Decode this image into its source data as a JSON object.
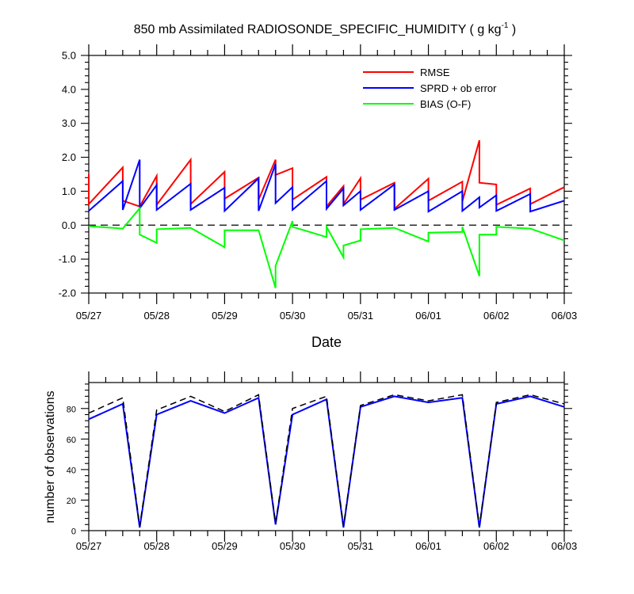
{
  "title": {
    "text": "850 mb Assimilated RADIOSONDE_SPECIFIC_HUMIDITY ( g kg",
    "superscript": "-1",
    "suffix": " )"
  },
  "x_tick_labels": [
    "05/27",
    "05/28",
    "05/29",
    "05/30",
    "05/31",
    "06/01",
    "06/02",
    "06/03"
  ],
  "chart_data": [
    {
      "type": "line",
      "title": "850 mb Assimilated RADIOSONDE_SPECIFIC_HUMIDITY ( g kg-1 )",
      "xlabel": "Date",
      "ylabel": "",
      "x_unit": "days since 05/27 00Z shown as date ticks",
      "xlim": [
        0,
        7
      ],
      "ylim": [
        -2.0,
        5.0
      ],
      "y_ticks": [
        -2.0,
        -1.0,
        0.0,
        1.0,
        2.0,
        3.0,
        4.0,
        5.0
      ],
      "y_tick_labels": [
        "-2.0",
        "-1.0",
        "0.0",
        "1.0",
        "2.0",
        "3.0",
        "4.0",
        "5.0"
      ],
      "reference_line": {
        "y": 0.0,
        "style": "dashed",
        "color": "#000000"
      },
      "legend": {
        "position": "top-right"
      },
      "series": [
        {
          "name": "RMSE",
          "color": "#ff0000",
          "points": [
            [
              0.0,
              1.5
            ],
            [
              0.0,
              0.62
            ],
            [
              0.5,
              1.7
            ],
            [
              0.5,
              0.72
            ],
            [
              0.75,
              0.55
            ],
            [
              0.75,
              0.55
            ],
            [
              1.0,
              1.45
            ],
            [
              1.0,
              0.6
            ],
            [
              1.5,
              1.93
            ],
            [
              1.5,
              0.62
            ],
            [
              2.0,
              1.57
            ],
            [
              2.0,
              0.78
            ],
            [
              2.5,
              1.4
            ],
            [
              2.5,
              0.75
            ],
            [
              2.75,
              1.93
            ],
            [
              2.75,
              1.48
            ],
            [
              3.0,
              1.68
            ],
            [
              3.0,
              0.75
            ],
            [
              3.5,
              1.42
            ],
            [
              3.5,
              0.55
            ],
            [
              3.75,
              1.15
            ],
            [
              3.75,
              0.62
            ],
            [
              4.0,
              1.38
            ],
            [
              4.0,
              0.75
            ],
            [
              4.5,
              1.25
            ],
            [
              4.5,
              0.48
            ],
            [
              5.0,
              1.37
            ],
            [
              5.0,
              0.72
            ],
            [
              5.5,
              1.28
            ],
            [
              5.5,
              0.7
            ],
            [
              5.75,
              2.5
            ],
            [
              5.75,
              1.25
            ],
            [
              6.0,
              1.2
            ],
            [
              6.0,
              0.6
            ],
            [
              6.5,
              1.08
            ],
            [
              6.5,
              0.62
            ],
            [
              7.0,
              1.12
            ]
          ]
        },
        {
          "name": "SPRD + ob error",
          "color": "#0000ff",
          "points": [
            [
              0.0,
              0.42
            ],
            [
              0.5,
              1.3
            ],
            [
              0.5,
              0.45
            ],
            [
              0.75,
              1.93
            ],
            [
              0.75,
              0.5
            ],
            [
              1.0,
              1.18
            ],
            [
              1.0,
              0.45
            ],
            [
              1.5,
              1.22
            ],
            [
              1.5,
              0.45
            ],
            [
              2.0,
              1.1
            ],
            [
              2.0,
              0.42
            ],
            [
              2.5,
              1.38
            ],
            [
              2.5,
              0.42
            ],
            [
              2.75,
              1.8
            ],
            [
              2.75,
              0.65
            ],
            [
              3.0,
              1.12
            ],
            [
              3.0,
              0.45
            ],
            [
              3.5,
              1.3
            ],
            [
              3.5,
              0.48
            ],
            [
              3.75,
              1.08
            ],
            [
              3.75,
              0.58
            ],
            [
              4.0,
              1.0
            ],
            [
              4.0,
              0.45
            ],
            [
              4.5,
              1.2
            ],
            [
              4.5,
              0.45
            ],
            [
              5.0,
              1.0
            ],
            [
              5.0,
              0.4
            ],
            [
              5.5,
              1.0
            ],
            [
              5.5,
              0.42
            ],
            [
              5.75,
              0.82
            ],
            [
              5.75,
              0.52
            ],
            [
              6.0,
              0.88
            ],
            [
              6.0,
              0.42
            ],
            [
              6.5,
              0.92
            ],
            [
              6.5,
              0.4
            ],
            [
              7.0,
              0.72
            ]
          ]
        },
        {
          "name": "BIAS (O-F)",
          "color": "#00ff00",
          "points": [
            [
              0.0,
              -0.03
            ],
            [
              0.5,
              -0.1
            ],
            [
              0.75,
              0.5
            ],
            [
              0.75,
              -0.28
            ],
            [
              1.0,
              -0.52
            ],
            [
              1.0,
              -0.12
            ],
            [
              1.5,
              -0.08
            ],
            [
              2.0,
              -0.65
            ],
            [
              2.0,
              -0.15
            ],
            [
              2.5,
              -0.15
            ],
            [
              2.75,
              -1.85
            ],
            [
              2.75,
              -1.2
            ],
            [
              3.0,
              0.12
            ],
            [
              3.0,
              -0.05
            ],
            [
              3.5,
              -0.35
            ],
            [
              3.5,
              -0.05
            ],
            [
              3.75,
              -0.95
            ],
            [
              3.75,
              -0.6
            ],
            [
              4.0,
              -0.45
            ],
            [
              4.0,
              -0.12
            ],
            [
              4.5,
              -0.08
            ],
            [
              5.0,
              -0.48
            ],
            [
              5.0,
              -0.22
            ],
            [
              5.5,
              -0.2
            ],
            [
              5.5,
              -0.05
            ],
            [
              5.75,
              -1.5
            ],
            [
              5.75,
              -0.28
            ],
            [
              6.0,
              -0.28
            ],
            [
              6.0,
              -0.05
            ],
            [
              6.5,
              -0.1
            ],
            [
              7.0,
              -0.45
            ]
          ]
        }
      ]
    },
    {
      "type": "line",
      "title": "",
      "xlabel": "",
      "ylabel": "number of observations",
      "xlim": [
        0,
        7
      ],
      "ylim": [
        0,
        97
      ],
      "y_ticks": [
        0,
        20,
        40,
        60,
        80
      ],
      "y_tick_labels": [
        "0",
        "20",
        "40",
        "60",
        "80"
      ],
      "series": [
        {
          "name": "",
          "color": "#0000ff",
          "style": "solid",
          "points": [
            [
              0.0,
              73
            ],
            [
              0.5,
              83
            ],
            [
              0.75,
              2
            ],
            [
              1.0,
              76
            ],
            [
              1.5,
              85
            ],
            [
              2.0,
              77
            ],
            [
              2.5,
              87
            ],
            [
              2.75,
              4
            ],
            [
              3.0,
              76
            ],
            [
              3.5,
              86
            ],
            [
              3.75,
              2
            ],
            [
              4.0,
              81
            ],
            [
              4.5,
              88
            ],
            [
              5.0,
              84
            ],
            [
              5.5,
              87
            ],
            [
              5.75,
              2
            ],
            [
              6.0,
              83
            ],
            [
              6.5,
              88
            ],
            [
              7.0,
              81
            ]
          ]
        },
        {
          "name": "",
          "color": "#000000",
          "style": "dashed",
          "points": [
            [
              0.0,
              77
            ],
            [
              0.5,
              87
            ],
            [
              0.75,
              3
            ],
            [
              1.0,
              79
            ],
            [
              1.5,
              88
            ],
            [
              2.0,
              78
            ],
            [
              2.5,
              89
            ],
            [
              2.75,
              5
            ],
            [
              3.0,
              80
            ],
            [
              3.5,
              88
            ],
            [
              3.75,
              3
            ],
            [
              4.0,
              82
            ],
            [
              4.5,
              89
            ],
            [
              5.0,
              85
            ],
            [
              5.5,
              89
            ],
            [
              5.75,
              3
            ],
            [
              6.0,
              84
            ],
            [
              6.5,
              89
            ],
            [
              7.0,
              83
            ]
          ]
        }
      ]
    }
  ]
}
